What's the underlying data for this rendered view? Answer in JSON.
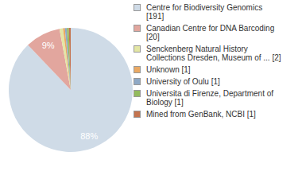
{
  "chart_data": {
    "type": "pie",
    "categories": [
      "Centre for Biodiversity Genomics [191]",
      "Canadian Centre for DNA Barcoding [20]",
      "Senckenberg Natural History Collections Dresden, Museum of ... [2]",
      "Unknown [1]",
      "University of Oulu [1]",
      "Universita di Firenze, Department of Biology [1]",
      "Mined from GenBank, NCBI [1]"
    ],
    "values": [
      87.6,
      9.2,
      0.9,
      0.5,
      0.5,
      0.5,
      0.5
    ],
    "value_labels": [
      "88%",
      "9%",
      null,
      null,
      null,
      null,
      null
    ],
    "colors": [
      "#cfdbe7",
      "#e2a69e",
      "#e3e6a4",
      "#eaa964",
      "#8fa9c6",
      "#93bb5e",
      "#c4744f"
    ],
    "data_labels": true,
    "legend": "right"
  }
}
